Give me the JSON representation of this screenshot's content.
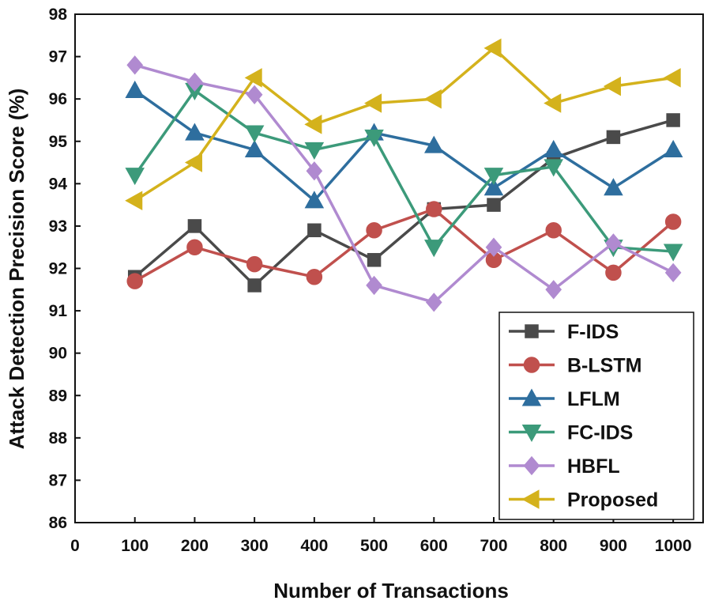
{
  "chart_data": {
    "type": "line",
    "title": "",
    "xlabel": "Number of Transactions",
    "ylabel": "Attack Detection Precision Score (%)",
    "xlim": [
      0,
      1050
    ],
    "ylim": [
      86,
      98
    ],
    "x_ticks": [
      0,
      100,
      200,
      300,
      400,
      500,
      600,
      700,
      800,
      900,
      1000
    ],
    "y_ticks": [
      86,
      87,
      88,
      89,
      90,
      91,
      92,
      93,
      94,
      95,
      96,
      97,
      98
    ],
    "grid": false,
    "legend_position": "bottom-right",
    "x": [
      100,
      200,
      300,
      400,
      500,
      600,
      700,
      800,
      900,
      1000
    ],
    "series": [
      {
        "name": "F-IDS",
        "color": "#4a4a4a",
        "marker": "square",
        "values": [
          91.8,
          93.0,
          91.6,
          92.9,
          92.2,
          93.4,
          93.5,
          94.6,
          95.1,
          95.5
        ]
      },
      {
        "name": "B-LSTM",
        "color": "#c0504d",
        "marker": "circle",
        "values": [
          91.7,
          92.5,
          92.1,
          91.8,
          92.9,
          93.4,
          92.2,
          92.9,
          91.9,
          93.1
        ]
      },
      {
        "name": "LFLM",
        "color": "#2e6e9e",
        "marker": "triangle-up",
        "values": [
          96.2,
          95.2,
          94.8,
          93.6,
          95.2,
          94.9,
          93.9,
          94.8,
          93.9,
          94.8
        ]
      },
      {
        "name": "FC-IDS",
        "color": "#3c9a7a",
        "marker": "triangle-down",
        "values": [
          94.2,
          96.2,
          95.2,
          94.8,
          95.1,
          92.5,
          94.2,
          94.4,
          92.5,
          92.4
        ]
      },
      {
        "name": "HBFL",
        "color": "#b08ad0",
        "marker": "diamond",
        "values": [
          96.8,
          96.4,
          96.1,
          94.3,
          91.6,
          91.2,
          92.5,
          91.5,
          92.6,
          91.9
        ]
      },
      {
        "name": "Proposed",
        "color": "#d4b21c",
        "marker": "triangle-left",
        "values": [
          93.6,
          94.5,
          96.5,
          95.4,
          95.9,
          96.0,
          97.2,
          95.9,
          96.3,
          96.5
        ]
      }
    ]
  }
}
